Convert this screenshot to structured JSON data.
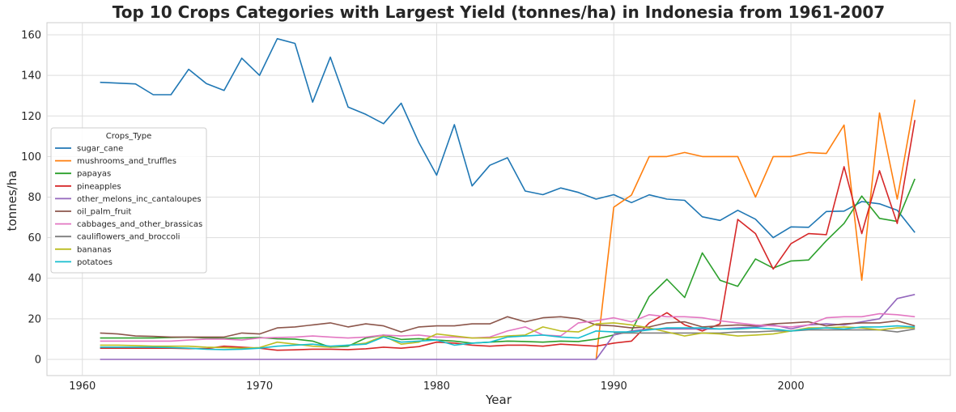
{
  "chart_data": {
    "type": "line",
    "title": "Top 10 Crops Categories with Largest Yield (tonnes/ha) in Indonesia from 1961-2007",
    "xlabel": "Year",
    "ylabel": "tonnes/ha",
    "xlim": [
      1958,
      2009
    ],
    "ylim": [
      -8,
      166
    ],
    "xticks": [
      1960,
      1970,
      1980,
      1990,
      2000
    ],
    "yticks": [
      0,
      20,
      40,
      60,
      80,
      100,
      120,
      140,
      160
    ],
    "grid": true,
    "legend": {
      "title": "Crops_Type",
      "placement": "center-left"
    },
    "x": [
      1961,
      1962,
      1963,
      1964,
      1965,
      1966,
      1967,
      1968,
      1969,
      1970,
      1971,
      1972,
      1973,
      1974,
      1975,
      1976,
      1977,
      1978,
      1979,
      1980,
      1981,
      1982,
      1983,
      1984,
      1985,
      1986,
      1987,
      1988,
      1989,
      1990,
      1991,
      1992,
      1993,
      1994,
      1995,
      1996,
      1997,
      1998,
      1999,
      2000,
      2001,
      2002,
      2003,
      2004,
      2005,
      2006,
      2007
    ],
    "series": [
      {
        "name": "sugar_cane",
        "color": "#1f77b4",
        "values": [
          136.6,
          136.2,
          135.8,
          130.5,
          130.5,
          143.0,
          136.0,
          132.6,
          148.5,
          140.0,
          158.1,
          155.8,
          126.8,
          149.0,
          124.4,
          120.8,
          116.2,
          126.3,
          106.8,
          90.8,
          115.7,
          85.5,
          95.7,
          99.4,
          83.0,
          81.2,
          84.5,
          82.3,
          79.0,
          81.2,
          77.3,
          81.1,
          79.0,
          78.4,
          70.3,
          68.5,
          73.5,
          69.1,
          60.0,
          65.3,
          65.1,
          72.9,
          73.1,
          77.8,
          76.7,
          73.5,
          62.5
        ]
      },
      {
        "name": "mushrooms_and_truffles",
        "color": "#ff7f0e",
        "values": [
          null,
          null,
          null,
          null,
          null,
          null,
          null,
          null,
          null,
          null,
          null,
          null,
          null,
          null,
          null,
          null,
          null,
          null,
          null,
          null,
          null,
          null,
          null,
          null,
          null,
          null,
          null,
          null,
          0.0,
          75.0,
          81.0,
          100.0,
          100.0,
          102.0,
          100.0,
          100.0,
          100.0,
          80.0,
          100.0,
          100.0,
          102.0,
          101.5,
          115.5,
          39.0,
          121.5,
          79.0,
          128.0
        ]
      },
      {
        "name": "papayas",
        "color": "#2ca02c",
        "values": [
          10.5,
          10.5,
          10.5,
          10.5,
          10.8,
          10.9,
          10.6,
          10.3,
          10.5,
          10.8,
          10.1,
          10.0,
          9.0,
          6.0,
          6.5,
          10.5,
          12.0,
          9.8,
          10.2,
          9.5,
          9.0,
          8.0,
          8.5,
          9.0,
          8.8,
          8.5,
          9.0,
          8.8,
          10.0,
          12.0,
          14.0,
          31.0,
          39.5,
          30.5,
          52.5,
          39.0,
          36.0,
          49.5,
          45.0,
          48.5,
          49.0,
          58.5,
          67.0,
          80.5,
          69.5,
          68.0,
          89.0
        ]
      },
      {
        "name": "pineapples",
        "color": "#d62728",
        "values": [
          5.5,
          5.5,
          5.5,
          5.5,
          5.5,
          5.3,
          5.3,
          6.5,
          6.0,
          5.5,
          4.5,
          4.7,
          5.0,
          5.0,
          4.8,
          5.2,
          6.0,
          5.5,
          6.3,
          8.5,
          8.0,
          7.0,
          6.5,
          7.0,
          7.0,
          6.5,
          7.5,
          7.0,
          6.5,
          8.0,
          9.0,
          18.0,
          23.0,
          17.0,
          14.0,
          17.5,
          69.0,
          62.0,
          44.5,
          57.0,
          62.0,
          61.5,
          95.0,
          62.0,
          93.0,
          67.0,
          118.0
        ]
      },
      {
        "name": "other_melons_inc_cantaloupes",
        "color": "#9467bd",
        "values": [
          0,
          0,
          0,
          0,
          0,
          0,
          0,
          0,
          0,
          0,
          0,
          0,
          0,
          0,
          0,
          0,
          0,
          0,
          0,
          0,
          0,
          0,
          0,
          0,
          0,
          0,
          0,
          0,
          0,
          12.0,
          14.0,
          15.0,
          15.0,
          15.0,
          15.0,
          15.0,
          15.5,
          16.0,
          17.0,
          15.0,
          17.0,
          17.5,
          17.0,
          18.5,
          20.0,
          30.0,
          32.0
        ]
      },
      {
        "name": "oil_palm_fruit",
        "color": "#8c564b",
        "values": [
          13.0,
          12.5,
          11.5,
          11.3,
          11.0,
          11.0,
          11.0,
          11.0,
          13.0,
          12.5,
          15.5,
          16.0,
          17.0,
          18.0,
          16.0,
          17.5,
          16.5,
          13.5,
          16.0,
          16.5,
          16.5,
          17.5,
          17.5,
          21.0,
          18.5,
          20.5,
          21.0,
          20.0,
          17.0,
          16.5,
          15.5,
          16.0,
          18.0,
          18.5,
          16.0,
          16.5,
          17.0,
          16.5,
          17.5,
          18.0,
          18.5,
          16.5,
          17.5,
          18.0,
          18.0,
          19.0,
          16.5
        ]
      },
      {
        "name": "cabbages_and_other_brassicas",
        "color": "#e377c2",
        "values": [
          9.0,
          9.0,
          9.0,
          9.0,
          9.0,
          9.5,
          10.0,
          10.0,
          9.5,
          10.5,
          10.8,
          11.0,
          11.5,
          11.0,
          10.5,
          11.0,
          12.0,
          11.5,
          12.0,
          11.0,
          11.0,
          10.5,
          11.0,
          14.0,
          16.0,
          12.0,
          11.5,
          18.0,
          19.0,
          20.5,
          18.5,
          22.0,
          21.0,
          21.0,
          20.5,
          19.0,
          18.0,
          17.0,
          16.5,
          16.0,
          17.0,
          20.5,
          21.0,
          21.0,
          22.5,
          22.0,
          21.0
        ]
      },
      {
        "name": "cauliflowers_and_broccoli",
        "color": "#7f7f7f",
        "values": [
          null,
          null,
          null,
          null,
          null,
          null,
          null,
          null,
          null,
          null,
          null,
          null,
          null,
          null,
          null,
          null,
          null,
          null,
          null,
          null,
          null,
          null,
          null,
          null,
          null,
          null,
          null,
          null,
          null,
          13.0,
          13.0,
          13.0,
          13.0,
          13.0,
          13.0,
          13.0,
          13.5,
          13.5,
          14.0,
          14.0,
          14.5,
          14.5,
          14.5,
          14.5,
          14.5,
          13.5,
          15.0
        ]
      },
      {
        "name": "bananas",
        "color": "#bcbd22",
        "values": [
          7.0,
          7.0,
          6.8,
          6.5,
          6.5,
          6.5,
          6.0,
          5.8,
          5.5,
          5.8,
          8.5,
          7.5,
          6.5,
          6.0,
          7.0,
          8.0,
          11.5,
          7.5,
          8.5,
          12.5,
          11.5,
          10.5,
          10.5,
          11.5,
          12.0,
          16.0,
          14.0,
          13.5,
          17.5,
          18.0,
          17.0,
          15.5,
          13.5,
          11.5,
          13.0,
          12.5,
          11.5,
          12.0,
          12.5,
          14.0,
          15.5,
          15.5,
          16.0,
          15.5,
          14.5,
          15.5,
          15.5
        ]
      },
      {
        "name": "potatoes",
        "color": "#17becf",
        "values": [
          6.0,
          6.0,
          6.0,
          6.0,
          5.8,
          5.5,
          5.0,
          4.8,
          5.0,
          5.5,
          6.5,
          7.0,
          7.5,
          6.5,
          7.0,
          7.5,
          11.0,
          8.5,
          9.0,
          9.5,
          7.0,
          8.0,
          8.5,
          11.0,
          11.5,
          12.0,
          11.0,
          10.5,
          14.0,
          13.5,
          13.5,
          14.5,
          15.5,
          15.5,
          15.5,
          15.0,
          15.0,
          15.5,
          15.0,
          14.0,
          15.0,
          15.5,
          15.0,
          16.0,
          16.0,
          16.5,
          16.0
        ]
      }
    ]
  }
}
